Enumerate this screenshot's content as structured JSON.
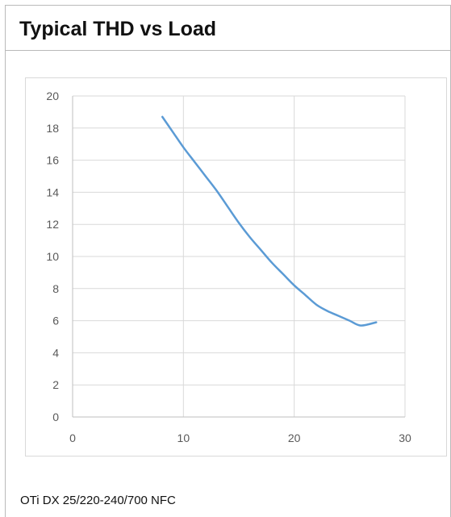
{
  "panel": {
    "title": "Typical THD vs Load",
    "caption": "OTi DX 25/220-240/700 NFC"
  },
  "chart_data": {
    "type": "line",
    "title": "",
    "xlabel": "",
    "ylabel": "",
    "xlim": [
      0,
      30
    ],
    "ylim": [
      0,
      20
    ],
    "x_ticks": [
      0,
      10,
      20,
      30
    ],
    "y_ticks": [
      0,
      2,
      4,
      6,
      8,
      10,
      12,
      14,
      16,
      18,
      20
    ],
    "grid": true,
    "legend": "none",
    "series_color": "#5b9bd5",
    "gridline_color": "#d9d9d9",
    "series": [
      {
        "x": [
          8.1,
          9,
          10,
          11,
          12,
          13,
          14,
          15,
          16,
          17,
          18,
          19,
          20,
          21,
          22,
          23,
          24,
          25,
          26,
          27.4
        ],
        "y": [
          18.7,
          17.8,
          16.8,
          15.9,
          15.0,
          14.1,
          13.1,
          12.1,
          11.2,
          10.4,
          9.6,
          8.9,
          8.2,
          7.6,
          7.0,
          6.6,
          6.3,
          6.0,
          5.7,
          5.9
        ]
      }
    ]
  }
}
